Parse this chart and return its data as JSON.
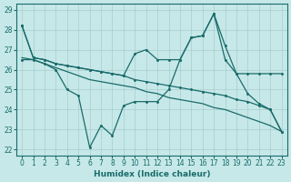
{
  "xlabel": "Humidex (Indice chaleur)",
  "ylabel": "",
  "xlim": [
    -0.5,
    23.5
  ],
  "ylim": [
    21.7,
    29.3
  ],
  "yticks": [
    22,
    23,
    24,
    25,
    26,
    27,
    28,
    29
  ],
  "xticks": [
    0,
    1,
    2,
    3,
    4,
    5,
    6,
    7,
    8,
    9,
    10,
    11,
    12,
    13,
    14,
    15,
    16,
    17,
    18,
    19,
    20,
    21,
    22,
    23
  ],
  "bg_color": "#c6e8e8",
  "grid_color": "#a8cccc",
  "line_color": "#1a6b6b",
  "line1_x": [
    0,
    1,
    2,
    3,
    4,
    5,
    6,
    7,
    8,
    9,
    10,
    11,
    12,
    13,
    14,
    15,
    16,
    17,
    18,
    19,
    20,
    21,
    22,
    23
  ],
  "line1_y": [
    28.2,
    26.6,
    26.5,
    26.3,
    26.2,
    26.1,
    26.0,
    25.9,
    25.8,
    25.7,
    25.5,
    25.4,
    25.3,
    25.2,
    25.1,
    25.0,
    24.9,
    24.8,
    24.7,
    24.5,
    24.4,
    24.2,
    24.0,
    22.9
  ],
  "line2_x": [
    0,
    1,
    2,
    3,
    4,
    5,
    6,
    7,
    8,
    9,
    10,
    11,
    12,
    13,
    14,
    15,
    16,
    17,
    18,
    19,
    20,
    21,
    22,
    23
  ],
  "line2_y": [
    26.6,
    26.5,
    26.3,
    26.1,
    25.9,
    25.7,
    25.5,
    25.4,
    25.3,
    25.2,
    25.1,
    24.9,
    24.8,
    24.6,
    24.5,
    24.4,
    24.3,
    24.1,
    24.0,
    23.8,
    23.6,
    23.4,
    23.2,
    22.9
  ],
  "line3_x": [
    0,
    1,
    2,
    3,
    4,
    5,
    6,
    7,
    8,
    9,
    10,
    11,
    12,
    13,
    14,
    15,
    16,
    17,
    18,
    19,
    20,
    21,
    22,
    23
  ],
  "line3_y": [
    28.2,
    26.6,
    26.5,
    26.3,
    26.2,
    26.1,
    26.0,
    25.9,
    25.8,
    25.7,
    26.8,
    27.0,
    26.5,
    26.5,
    26.5,
    27.6,
    27.7,
    28.8,
    26.5,
    25.8,
    25.8,
    25.8,
    25.8,
    25.8
  ],
  "line4_x": [
    0,
    1,
    2,
    3,
    4,
    5,
    6,
    7,
    8,
    9,
    10,
    11,
    12,
    13,
    14,
    15,
    16,
    17,
    18,
    19,
    20,
    21,
    22,
    23
  ],
  "line4_y": [
    26.5,
    26.5,
    26.3,
    26.0,
    25.0,
    24.7,
    22.1,
    23.2,
    22.7,
    24.2,
    24.4,
    24.4,
    24.4,
    25.0,
    26.5,
    27.6,
    27.7,
    28.8,
    27.2,
    25.8,
    24.8,
    24.3,
    24.0,
    22.9
  ]
}
